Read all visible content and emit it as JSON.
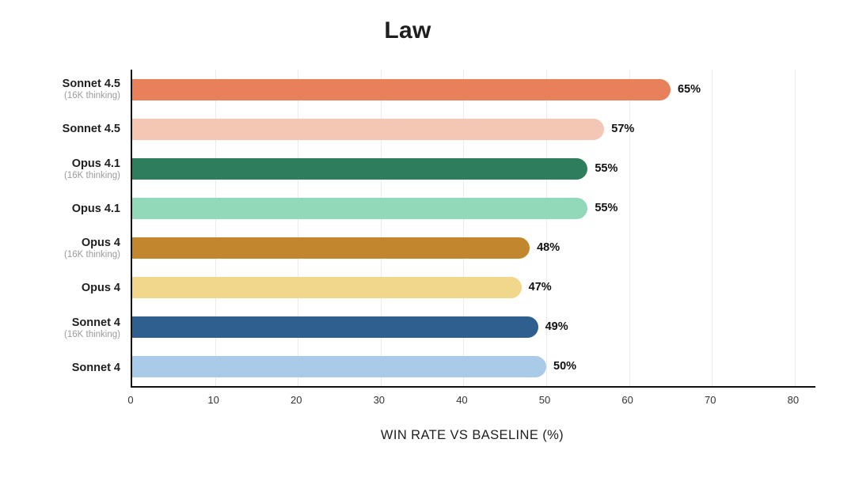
{
  "chart_data": {
    "type": "bar",
    "orientation": "horizontal",
    "title": "Law",
    "xlabel": "WIN RATE VS BASELINE (%)",
    "xlim": [
      0,
      82.5
    ],
    "xticks": [
      0,
      10,
      20,
      30,
      40,
      50,
      60,
      70,
      80
    ],
    "grid": true,
    "bars": [
      {
        "label": "Sonnet 4.5",
        "sublabel": "(16K thinking)",
        "value": 65,
        "display": "65%",
        "color": "#E8805B"
      },
      {
        "label": "Sonnet 4.5",
        "sublabel": "",
        "value": 57,
        "display": "57%",
        "color": "#F4C6B4"
      },
      {
        "label": "Opus 4.1",
        "sublabel": "(16K thinking)",
        "value": 55,
        "display": "55%",
        "color": "#2E7D5C"
      },
      {
        "label": "Opus 4.1",
        "sublabel": "",
        "value": 55,
        "display": "55%",
        "color": "#92D9B9"
      },
      {
        "label": "Opus 4",
        "sublabel": "(16K thinking)",
        "value": 48,
        "display": "48%",
        "color": "#C2872E"
      },
      {
        "label": "Opus 4",
        "sublabel": "",
        "value": 47,
        "display": "47%",
        "color": "#F1D78B"
      },
      {
        "label": "Sonnet 4",
        "sublabel": "(16K thinking)",
        "value": 49,
        "display": "49%",
        "color": "#2E5F8F"
      },
      {
        "label": "Sonnet 4",
        "sublabel": "",
        "value": 50,
        "display": "50%",
        "color": "#A9CBE8"
      }
    ]
  }
}
